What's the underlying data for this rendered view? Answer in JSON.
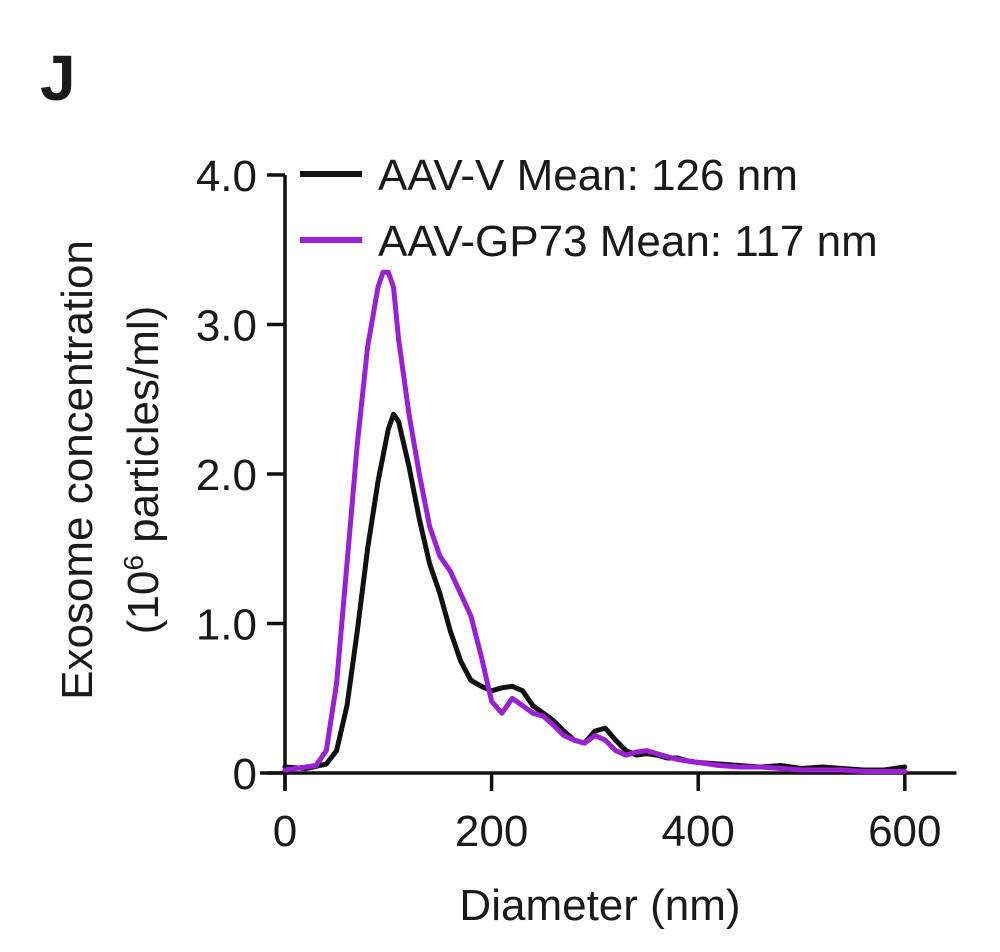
{
  "panel_label": "J",
  "chart_data": {
    "type": "line",
    "title": "",
    "xlabel": "Diameter (nm)",
    "ylabel_line1": "Exosome concentration",
    "ylabel_line2_pre": "(10",
    "ylabel_line2_sup": "6",
    "ylabel_line2_post": " particles/ml)",
    "xlim": [
      0,
      650
    ],
    "ylim": [
      0,
      4.0
    ],
    "x_ticks": [
      0,
      200,
      400,
      600
    ],
    "x_tick_labels": [
      "0",
      "200",
      "400",
      "600"
    ],
    "y_ticks": [
      0,
      1.0,
      2.0,
      3.0,
      4.0
    ],
    "y_tick_labels": [
      "0",
      "1.0",
      "2.0",
      "3.0",
      "4.0"
    ],
    "grid": false,
    "legend_position": "top",
    "series": [
      {
        "name": "AAV-V Mean: 126 nm",
        "color": "#111111",
        "points": [
          [
            0,
            0.04
          ],
          [
            20,
            0.03
          ],
          [
            40,
            0.06
          ],
          [
            50,
            0.15
          ],
          [
            60,
            0.45
          ],
          [
            70,
            0.95
          ],
          [
            80,
            1.5
          ],
          [
            90,
            1.95
          ],
          [
            100,
            2.3
          ],
          [
            105,
            2.4
          ],
          [
            110,
            2.35
          ],
          [
            120,
            2.05
          ],
          [
            130,
            1.7
          ],
          [
            140,
            1.4
          ],
          [
            150,
            1.2
          ],
          [
            160,
            0.95
          ],
          [
            170,
            0.75
          ],
          [
            180,
            0.62
          ],
          [
            190,
            0.58
          ],
          [
            200,
            0.55
          ],
          [
            210,
            0.57
          ],
          [
            220,
            0.58
          ],
          [
            230,
            0.55
          ],
          [
            240,
            0.45
          ],
          [
            250,
            0.4
          ],
          [
            260,
            0.35
          ],
          [
            270,
            0.28
          ],
          [
            280,
            0.22
          ],
          [
            290,
            0.2
          ],
          [
            300,
            0.28
          ],
          [
            310,
            0.3
          ],
          [
            320,
            0.22
          ],
          [
            330,
            0.15
          ],
          [
            340,
            0.12
          ],
          [
            350,
            0.13
          ],
          [
            360,
            0.12
          ],
          [
            370,
            0.1
          ],
          [
            380,
            0.1
          ],
          [
            390,
            0.08
          ],
          [
            400,
            0.07
          ],
          [
            420,
            0.06
          ],
          [
            440,
            0.05
          ],
          [
            460,
            0.04
          ],
          [
            480,
            0.05
          ],
          [
            500,
            0.03
          ],
          [
            520,
            0.04
          ],
          [
            540,
            0.03
          ],
          [
            560,
            0.02
          ],
          [
            580,
            0.02
          ],
          [
            600,
            0.04
          ]
        ]
      },
      {
        "name": "AAV-GP73 Mean: 117 nm",
        "color": "#9b1fd4",
        "points": [
          [
            0,
            0.02
          ],
          [
            20,
            0.04
          ],
          [
            30,
            0.05
          ],
          [
            40,
            0.15
          ],
          [
            50,
            0.6
          ],
          [
            60,
            1.4
          ],
          [
            70,
            2.2
          ],
          [
            80,
            2.85
          ],
          [
            90,
            3.25
          ],
          [
            95,
            3.35
          ],
          [
            100,
            3.35
          ],
          [
            105,
            3.25
          ],
          [
            110,
            2.9
          ],
          [
            120,
            2.4
          ],
          [
            130,
            2.0
          ],
          [
            140,
            1.65
          ],
          [
            150,
            1.45
          ],
          [
            160,
            1.35
          ],
          [
            170,
            1.2
          ],
          [
            180,
            1.05
          ],
          [
            190,
            0.78
          ],
          [
            200,
            0.48
          ],
          [
            210,
            0.4
          ],
          [
            220,
            0.5
          ],
          [
            230,
            0.45
          ],
          [
            240,
            0.4
          ],
          [
            250,
            0.38
          ],
          [
            260,
            0.32
          ],
          [
            270,
            0.25
          ],
          [
            280,
            0.22
          ],
          [
            290,
            0.2
          ],
          [
            300,
            0.25
          ],
          [
            310,
            0.22
          ],
          [
            320,
            0.15
          ],
          [
            330,
            0.12
          ],
          [
            340,
            0.14
          ],
          [
            350,
            0.15
          ],
          [
            360,
            0.13
          ],
          [
            370,
            0.11
          ],
          [
            380,
            0.09
          ],
          [
            390,
            0.08
          ],
          [
            400,
            0.07
          ],
          [
            420,
            0.05
          ],
          [
            440,
            0.04
          ],
          [
            460,
            0.04
          ],
          [
            480,
            0.03
          ],
          [
            500,
            0.02
          ],
          [
            520,
            0.02
          ],
          [
            540,
            0.02
          ],
          [
            560,
            0.01
          ],
          [
            580,
            0.01
          ],
          [
            600,
            0.01
          ]
        ]
      }
    ]
  }
}
